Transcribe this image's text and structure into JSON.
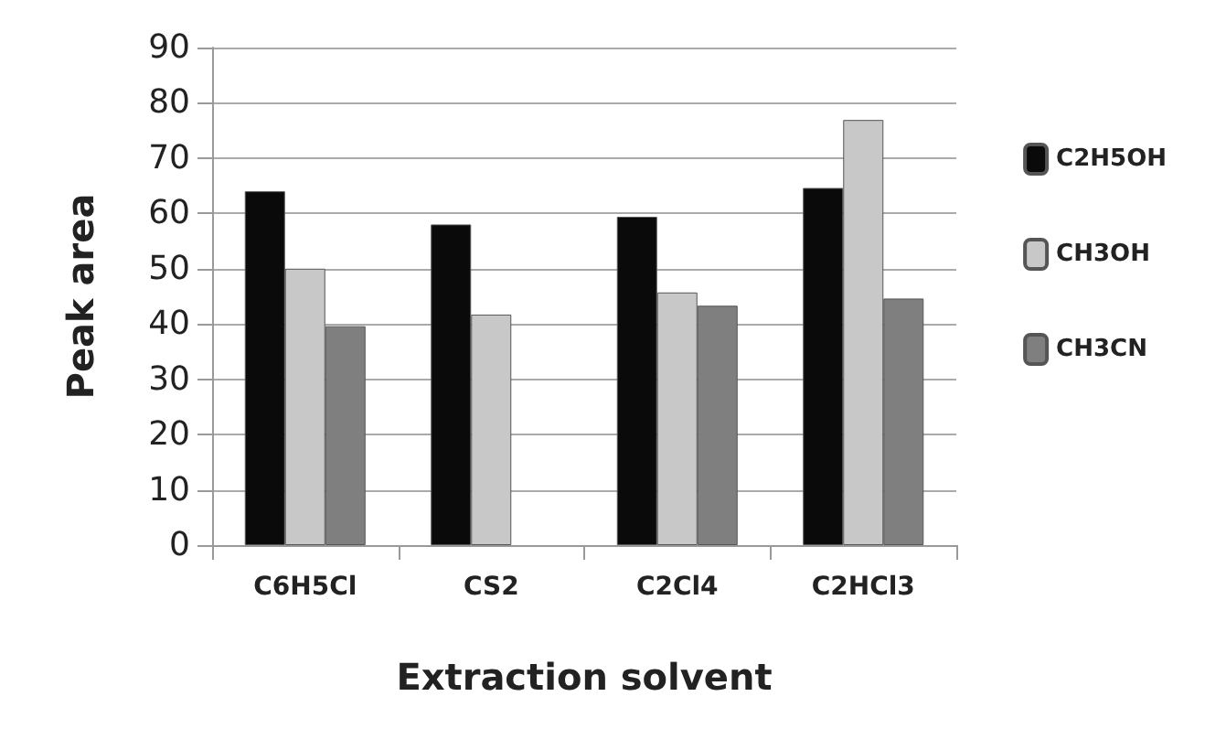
{
  "chart_data": {
    "type": "bar",
    "xlabel": "Extraction solvent",
    "ylabel": "Peak area",
    "categories": [
      "C6H5Cl",
      "CS2",
      "C2Cl4",
      "C2HCl3"
    ],
    "series": [
      {
        "name": "C2H5OH",
        "color": "#0a0a0a",
        "values": [
          64,
          58,
          59.4,
          64.6
        ]
      },
      {
        "name": "CH3OH",
        "color": "#c8c8c8",
        "values": [
          50,
          41.7,
          45.7,
          76.9
        ]
      },
      {
        "name": "CH3CN",
        "color": "#7f7f7f",
        "values": [
          39.6,
          null,
          43.3,
          44.6
        ]
      }
    ],
    "ylim": [
      0,
      90
    ],
    "yticks": [
      0,
      10,
      20,
      30,
      40,
      50,
      60,
      70,
      80,
      90
    ],
    "grid": "y",
    "legend": "right"
  }
}
